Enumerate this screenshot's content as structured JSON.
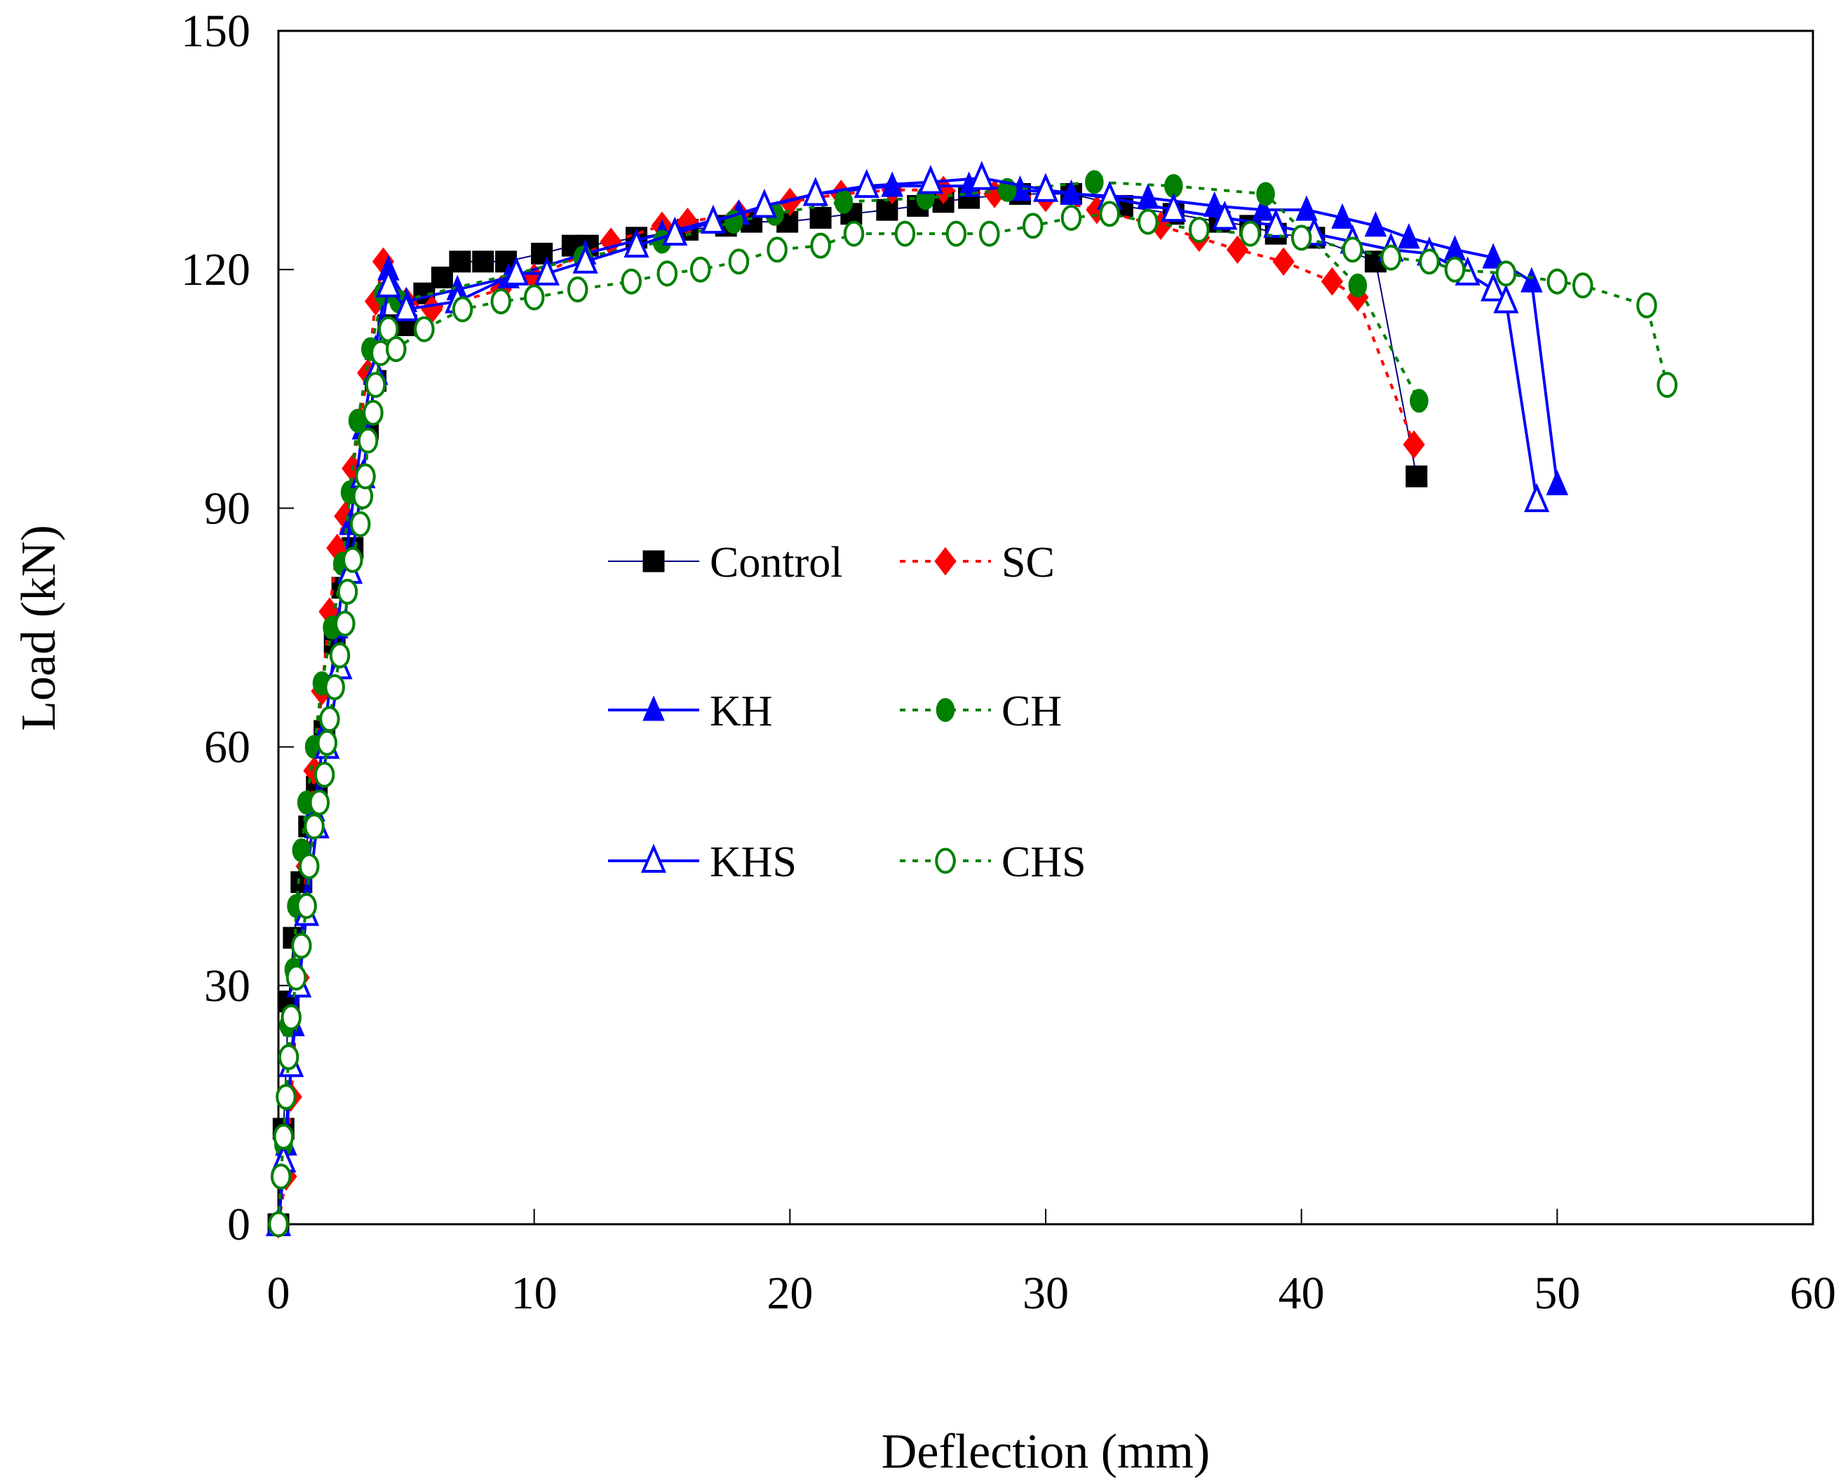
{
  "chart_data": {
    "type": "line",
    "title": "",
    "xlabel": "Deflection (mm)",
    "ylabel": "Load (kN)",
    "xlim": [
      0,
      60
    ],
    "ylim": [
      0,
      150
    ],
    "xticks": [
      0,
      10,
      20,
      30,
      40,
      50,
      60
    ],
    "yticks": [
      0,
      30,
      60,
      90,
      120,
      150
    ],
    "grid": false,
    "legend_position": "center-left",
    "series": [
      {
        "name": "Control",
        "line_color": "#000080",
        "line_style": "solid",
        "marker": "square",
        "marker_color": "#000000",
        "filled": true,
        "x": [
          0,
          0.2,
          0.4,
          0.6,
          0.9,
          1.2,
          1.5,
          1.8,
          2.2,
          2.5,
          2.9,
          3.2,
          3.5,
          3.8,
          4.3,
          5,
          5.7,
          6.4,
          7.1,
          8,
          8.9,
          10.3,
          11.5,
          12.1,
          14,
          16,
          17.5,
          18.5,
          19.9,
          21.2,
          22.4,
          23.8,
          25,
          26,
          27,
          29,
          31,
          33,
          35,
          36.8,
          38,
          39,
          40.5,
          42.9,
          44.5
        ],
        "y": [
          0,
          12,
          28,
          36,
          43,
          50,
          55,
          62,
          73,
          80,
          85,
          92,
          100,
          106,
          113,
          113,
          117,
          119,
          121,
          121,
          121,
          122,
          123,
          123,
          124,
          125,
          125.5,
          126,
          126,
          126.5,
          127,
          127.5,
          128,
          128.5,
          129,
          129.5,
          129.5,
          128,
          127,
          126,
          125.5,
          124.5,
          124,
          121,
          94
        ]
      },
      {
        "name": "SC",
        "line_color": "#ff0000",
        "line_style": "dotted",
        "marker": "diamond",
        "marker_color": "#ff0000",
        "filled": true,
        "x": [
          0,
          0.3,
          0.5,
          0.8,
          1.1,
          1.4,
          1.7,
          2,
          2.3,
          2.6,
          2.9,
          3.2,
          3.5,
          3.8,
          4.1,
          5,
          6,
          8.7,
          10,
          13,
          15,
          16,
          18,
          20,
          22,
          24,
          26,
          28,
          30,
          32,
          34.5,
          36,
          37.5,
          39.3,
          41.2,
          42.2,
          44.4
        ],
        "y": [
          0,
          6,
          16,
          31,
          45,
          57,
          67,
          77,
          85,
          89,
          95,
          101,
          107,
          116,
          121,
          116,
          115,
          117.5,
          119,
          123.5,
          125.5,
          126,
          127,
          128.5,
          129.5,
          130,
          130,
          129.5,
          129,
          127.5,
          125.5,
          124,
          122.5,
          121,
          118.5,
          116.5,
          98
        ]
      },
      {
        "name": "KH",
        "line_color": "#0000ff",
        "line_style": "solid",
        "marker": "triangle",
        "marker_color": "#0000ff",
        "filled": true,
        "x": [
          0,
          0.3,
          0.6,
          1,
          1.4,
          1.8,
          2.3,
          2.8,
          3.3,
          3.8,
          4.3,
          5,
          7,
          9,
          12,
          15,
          18,
          21,
          24,
          27,
          29,
          31,
          34,
          36.6,
          38.5,
          40.2,
          41.6,
          42.9,
          44.2,
          46,
          47.5,
          49,
          50
        ],
        "y": [
          0,
          10,
          25,
          40,
          52,
          62,
          75,
          88,
          100,
          110,
          120,
          116,
          117.5,
          119,
          122,
          124.5,
          127,
          129.5,
          130.5,
          130.5,
          130,
          129.5,
          129,
          128,
          127.5,
          127.5,
          126.5,
          125.5,
          124,
          122.5,
          121.5,
          118.5,
          93
        ]
      },
      {
        "name": "CH",
        "line_color": "#008000",
        "line_style": "dotted",
        "marker": "circle",
        "marker_color": "#008000",
        "filled": true,
        "x": [
          0,
          0.2,
          0.4,
          0.6,
          0.7,
          0.9,
          1.1,
          1.4,
          1.7,
          2.1,
          2.5,
          2.8,
          3.1,
          3.6,
          4.1,
          4.7,
          11.9,
          15,
          17.8,
          19.4,
          22.1,
          25.3,
          28.5,
          31.9,
          35,
          38.6,
          42.2,
          44.6
        ],
        "y": [
          0,
          10,
          25,
          32,
          40,
          47,
          53,
          60,
          68,
          75,
          83,
          92,
          101,
          110,
          117,
          116,
          121.5,
          123.5,
          126,
          127,
          128.5,
          129,
          130,
          131,
          130.5,
          129.5,
          118,
          103.5
        ]
      },
      {
        "name": "KHS",
        "line_color": "#0000ff",
        "line_style": "solid",
        "marker": "triangle",
        "marker_color": "#0000ff",
        "filled": false,
        "x": [
          0,
          0.2,
          0.5,
          0.8,
          1.1,
          1.5,
          1.9,
          2.4,
          2.8,
          3.3,
          3.8,
          4.3,
          5,
          7,
          9.3,
          10.5,
          12,
          14,
          15.5,
          17,
          19,
          21,
          23,
          25.5,
          27.5,
          30,
          32.5,
          35,
          37,
          39,
          40.5,
          42,
          43.5,
          45,
          46.5,
          47.5,
          48,
          49.2
        ],
        "y": [
          0,
          8,
          20,
          30,
          39,
          50,
          60,
          70,
          82,
          94,
          107,
          118,
          115,
          116,
          119.5,
          119.5,
          121,
          123,
          124.5,
          126,
          128,
          129.5,
          130.5,
          131,
          131.5,
          130,
          129,
          127.5,
          126.5,
          125.5,
          124.5,
          123.5,
          122.5,
          122,
          119.5,
          117.5,
          116,
          91
        ]
      },
      {
        "name": "CHS",
        "line_color": "#008000",
        "line_style": "dotted",
        "marker": "circle",
        "marker_color": "#008000",
        "filled": false,
        "x": [
          0,
          0.1,
          0.2,
          0.3,
          0.4,
          0.5,
          0.7,
          0.9,
          1.1,
          1.2,
          1.4,
          1.6,
          1.8,
          1.9,
          2,
          2.2,
          2.4,
          2.6,
          2.7,
          2.9,
          3.2,
          3.3,
          3.4,
          3.5,
          3.7,
          3.8,
          4,
          4.3,
          4.6,
          5.7,
          7.2,
          8.7,
          10,
          11.7,
          13.8,
          15.2,
          16.5,
          18,
          19.5,
          21.2,
          22.5,
          24.5,
          26.5,
          27.8,
          29.5,
          31,
          32.5,
          34,
          36,
          38,
          40,
          42,
          43.5,
          45,
          46,
          48,
          50,
          51,
          53.5,
          54.3
        ],
        "y": [
          0,
          6,
          11,
          16,
          21,
          26,
          31,
          35,
          40,
          45,
          50,
          53,
          56.5,
          60.5,
          63.5,
          67.5,
          71.5,
          75.5,
          79.5,
          83.5,
          88,
          91.5,
          94,
          98.5,
          102,
          105.5,
          109.5,
          112.5,
          110,
          112.5,
          115,
          116,
          116.5,
          117.5,
          118.5,
          119.5,
          120,
          121,
          122.5,
          123,
          124.5,
          124.5,
          124.5,
          124.5,
          125.5,
          126.5,
          127,
          126,
          125,
          124.5,
          124,
          122.5,
          121.5,
          121,
          120,
          119.5,
          118.5,
          118,
          115.5,
          105.5
        ]
      }
    ]
  }
}
